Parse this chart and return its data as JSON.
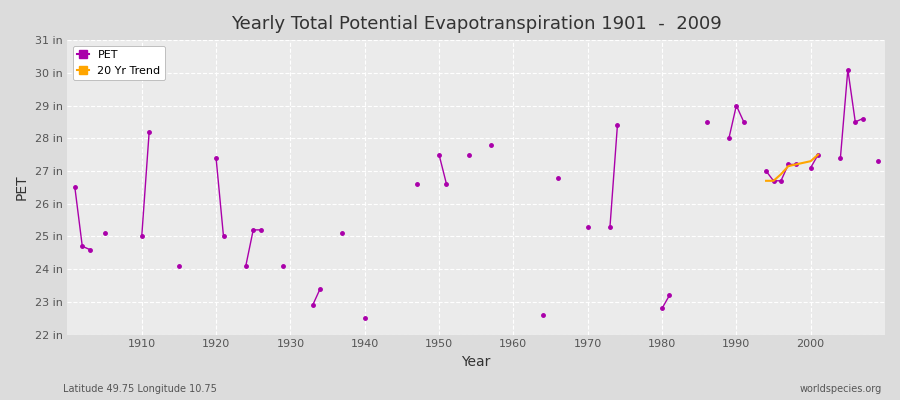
{
  "title": "Yearly Total Potential Evapotranspiration 1901  -  2009",
  "xlabel": "Year",
  "ylabel": "PET",
  "subtitle_left": "Latitude 49.75 Longitude 10.75",
  "subtitle_right": "worldspecies.org",
  "ylim": [
    22,
    31
  ],
  "ytick_labels": [
    "22 in",
    "23 in",
    "24 in",
    "25 in",
    "26 in",
    "27 in",
    "28 in",
    "29 in",
    "30 in",
    "31 in"
  ],
  "ytick_values": [
    22,
    23,
    24,
    25,
    26,
    27,
    28,
    29,
    30,
    31
  ],
  "pet_color": "#AA00AA",
  "trend_color": "#FFA500",
  "background_color": "#DCDCDC",
  "plot_bg_color": "#EBEBEB",
  "grid_color": "#FFFFFF",
  "legend_bg": "#FFFFFF",
  "years": [
    1901,
    1902,
    1903,
    1904,
    1905,
    1906,
    1907,
    1908,
    1909,
    1910,
    1911,
    1912,
    1913,
    1914,
    1915,
    1916,
    1917,
    1918,
    1919,
    1920,
    1921,
    1922,
    1923,
    1924,
    1925,
    1926,
    1927,
    1928,
    1929,
    1930,
    1931,
    1932,
    1933,
    1934,
    1935,
    1936,
    1937,
    1938,
    1939,
    1940,
    1941,
    1942,
    1943,
    1944,
    1945,
    1946,
    1947,
    1948,
    1949,
    1950,
    1951,
    1952,
    1953,
    1954,
    1955,
    1956,
    1957,
    1958,
    1959,
    1960,
    1961,
    1962,
    1963,
    1964,
    1965,
    1966,
    1967,
    1968,
    1969,
    1970,
    1971,
    1972,
    1973,
    1974,
    1975,
    1976,
    1977,
    1978,
    1979,
    1980,
    1981,
    1982,
    1983,
    1984,
    1985,
    1986,
    1987,
    1988,
    1989,
    1990,
    1991,
    1992,
    1993,
    1994,
    1995,
    1996,
    1997,
    1998,
    1999,
    2000,
    2001,
    2002,
    2003,
    2004,
    2005,
    2006,
    2007,
    2008,
    2009
  ],
  "pet_values": [
    26.5,
    24.7,
    24.6,
    null,
    25.1,
    null,
    null,
    null,
    null,
    25.0,
    28.2,
    null,
    null,
    null,
    24.1,
    null,
    null,
    null,
    null,
    27.4,
    25.0,
    null,
    null,
    24.1,
    25.2,
    25.2,
    null,
    null,
    24.1,
    null,
    null,
    null,
    22.9,
    23.4,
    null,
    null,
    25.1,
    null,
    null,
    22.5,
    null,
    null,
    null,
    null,
    null,
    null,
    26.6,
    null,
    null,
    27.5,
    26.6,
    null,
    null,
    27.5,
    null,
    null,
    27.8,
    null,
    null,
    null,
    null,
    null,
    null,
    22.6,
    null,
    26.8,
    null,
    null,
    null,
    25.3,
    null,
    null,
    25.3,
    28.4,
    null,
    null,
    null,
    null,
    null,
    22.8,
    23.2,
    null,
    null,
    null,
    null,
    28.5,
    null,
    null,
    28.0,
    29.0,
    28.5,
    null,
    null,
    27.0,
    26.7,
    26.7,
    27.2,
    27.2,
    null,
    27.1,
    27.5,
    null,
    null,
    27.4,
    30.1,
    28.5,
    28.6,
    null,
    27.3
  ],
  "trend_years": [
    1994,
    1995,
    1996,
    1997,
    1998,
    1999,
    2000,
    2001
  ],
  "trend_values": [
    26.7,
    26.7,
    26.9,
    27.15,
    27.2,
    27.25,
    27.3,
    27.5
  ]
}
